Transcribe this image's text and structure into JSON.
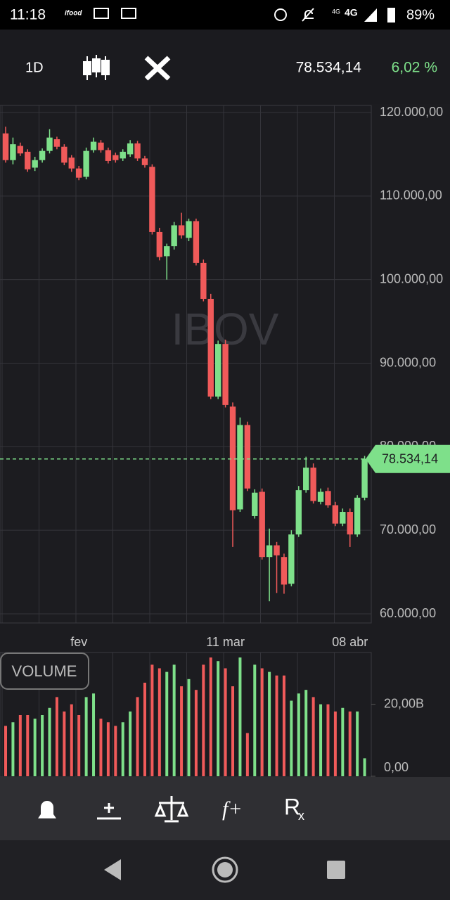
{
  "status_bar": {
    "time": "11:18",
    "app_label": "ifood",
    "network_1": "4G",
    "network_2": "4G",
    "battery": "89%"
  },
  "toolbar": {
    "interval": "1D",
    "price": "78.534,14",
    "change": "6,02 %"
  },
  "chart_data": [
    {
      "type": "candlestick",
      "watermark": "IBOV",
      "categories": [
        null,
        null,
        null,
        null,
        null,
        null,
        null,
        null,
        null,
        null,
        "fev",
        null,
        null,
        null,
        null,
        null,
        null,
        null,
        null,
        null,
        null,
        null,
        null,
        null,
        null,
        null,
        null,
        null,
        null,
        null,
        "11 mar",
        null,
        null,
        null,
        null,
        null,
        null,
        null,
        null,
        null,
        null,
        null,
        null,
        null,
        null,
        null,
        null,
        "08 abr",
        null,
        null
      ],
      "open": [
        117500,
        114300,
        116000,
        115300,
        113400,
        114300,
        115400,
        116800,
        115900,
        114600,
        113300,
        112300,
        115500,
        116400,
        115500,
        114900,
        114500,
        115000,
        116300,
        114500,
        113500,
        105700,
        102800,
        104000,
        106500,
        105000,
        107000,
        102000,
        97700,
        86000,
        92300,
        84800,
        72500,
        82600,
        71700,
        74600,
        66800,
        68200,
        66800,
        63600,
        69500,
        74800,
        77500,
        73400,
        74700,
        73000,
        70800,
        72200,
        69500,
        73900
      ],
      "high": [
        118300,
        117000,
        116400,
        115600,
        114700,
        115700,
        118000,
        117100,
        116200,
        114900,
        113600,
        115800,
        117000,
        116700,
        115800,
        115200,
        115600,
        116700,
        116600,
        114800,
        113800,
        106200,
        104300,
        106900,
        108000,
        107300,
        107300,
        102400,
        98300,
        92700,
        92800,
        85300,
        83500,
        83000,
        74900,
        75000,
        70200,
        68600,
        67200,
        70000,
        75300,
        78800,
        78000,
        75000,
        75100,
        73400,
        72600,
        72600,
        74200,
        78900
      ],
      "low": [
        114000,
        113800,
        114800,
        112900,
        113000,
        114000,
        115100,
        115600,
        113700,
        112900,
        111900,
        112000,
        115200,
        115200,
        113900,
        114000,
        114200,
        114700,
        114200,
        113400,
        105400,
        102300,
        100000,
        103600,
        104900,
        104600,
        101700,
        97400,
        85700,
        85700,
        84700,
        68000,
        72200,
        74700,
        71400,
        66500,
        61500,
        62500,
        62400,
        63300,
        69200,
        74500,
        73200,
        73100,
        72700,
        70500,
        70500,
        68000,
        69200,
        73600
      ],
      "close": [
        114300,
        116200,
        115100,
        113200,
        114300,
        115400,
        117000,
        115900,
        114000,
        113300,
        112200,
        115400,
        116500,
        115500,
        114200,
        114300,
        115300,
        116300,
        114500,
        113700,
        105700,
        102700,
        104000,
        106500,
        105300,
        107000,
        102000,
        97700,
        86000,
        92300,
        85000,
        72400,
        82600,
        75000,
        74500,
        66800,
        68200,
        67000,
        63500,
        69500,
        74800,
        77500,
        73500,
        74600,
        73000,
        70800,
        72200,
        69500,
        73900,
        78534.14
      ],
      "up_color": "#7ee08a",
      "down_color": "#f05a5a",
      "ylim": [
        60000,
        120000
      ],
      "yticks": [
        {
          "value": 60000,
          "label": "60.000,00"
        },
        {
          "value": 70000,
          "label": "70.000,00"
        },
        {
          "value": 80000,
          "label": "80.000,00"
        },
        {
          "value": 90000,
          "label": "90.000,00"
        },
        {
          "value": 100000,
          "label": "100.000,00"
        },
        {
          "value": 110000,
          "label": "110.000,00"
        },
        {
          "value": 120000,
          "label": "120.000,00"
        }
      ],
      "grid": true,
      "last_price": {
        "value": 78534.14,
        "label": "78.534,14"
      }
    },
    {
      "type": "bar",
      "title": "VOLUME",
      "values": [
        14,
        15,
        17,
        17,
        16,
        17,
        19,
        22,
        18,
        20,
        17,
        22,
        23,
        16,
        15,
        14,
        15,
        18,
        22,
        26,
        31,
        30,
        29,
        31,
        25,
        27,
        24,
        31,
        33,
        32,
        30,
        25,
        33,
        12,
        31,
        30,
        29,
        28,
        28,
        21,
        23,
        24,
        22,
        20,
        20,
        18,
        19,
        18,
        18,
        5
      ],
      "ylim": [
        0,
        34
      ],
      "yticks": [
        {
          "value": 0,
          "label": "0,00"
        },
        {
          "value": 20,
          "label": "20,00B"
        }
      ]
    }
  ],
  "bottom_toolbar": {
    "function_label": "f+",
    "rx_label": "R",
    "rx_sub": "x"
  }
}
